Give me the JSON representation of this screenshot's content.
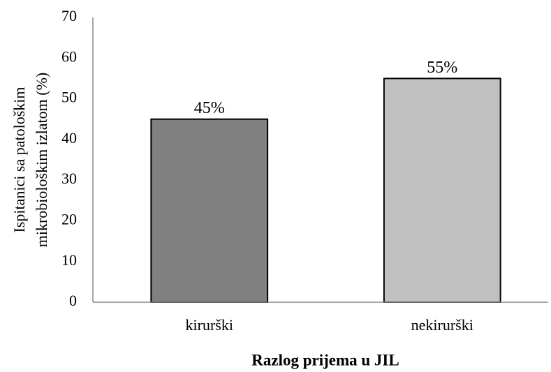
{
  "chart_data": {
    "type": "bar",
    "categories": [
      "kirurški",
      "nekirurški"
    ],
    "values": [
      45,
      55
    ],
    "value_labels": [
      "45%",
      "55%"
    ],
    "colors": [
      "#808080",
      "#c0c0c0"
    ],
    "xlabel": "Razlog prijema u JIL",
    "ylabel": [
      "Ispitanici sa patološkim",
      "mikrobiološkim izlatom (%)"
    ],
    "ylim": [
      0,
      70
    ],
    "yticks": [
      0,
      10,
      20,
      30,
      40,
      50,
      60,
      70
    ],
    "grid": false
  }
}
